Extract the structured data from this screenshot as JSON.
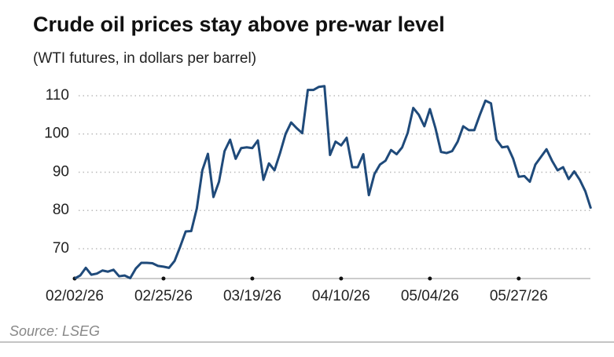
{
  "chart_data": {
    "type": "line",
    "title": "Crude oil prices stay above pre-war level",
    "subtitle": "(WTI futures, in dollars per barrel)",
    "source": "Source: LSEG",
    "categories": [
      "02/02/26",
      null,
      null,
      null,
      null,
      null,
      null,
      null,
      null,
      null,
      null,
      null,
      null,
      null,
      null,
      null,
      "02/25/26",
      null,
      null,
      null,
      null,
      null,
      null,
      null,
      null,
      null,
      null,
      null,
      null,
      null,
      null,
      null,
      "03/19/26",
      null,
      null,
      null,
      null,
      null,
      null,
      null,
      null,
      null,
      null,
      null,
      null,
      null,
      null,
      null,
      "04/10/26",
      null,
      null,
      null,
      null,
      null,
      null,
      null,
      null,
      null,
      null,
      null,
      null,
      null,
      null,
      null,
      "05/04/26",
      null,
      null,
      null,
      null,
      null,
      null,
      null,
      null,
      null,
      null,
      null,
      null,
      null,
      null,
      null,
      "05/27/26",
      null,
      null,
      null,
      null,
      null,
      null,
      null,
      null,
      null,
      null,
      null,
      null,
      null
    ],
    "series": [
      {
        "name": "WTI futures",
        "color": "#1f4a7a",
        "values": [
          62.2,
          63,
          65,
          63.2,
          63.5,
          64.3,
          64,
          64.5,
          62.8,
          63,
          62.3,
          64.8,
          66.3,
          66.3,
          66.2,
          65.5,
          65.3,
          65,
          66.8,
          70.5,
          74.5,
          74.6,
          80.5,
          90.5,
          94.8,
          83.5,
          87.5,
          95.5,
          98.5,
          93.5,
          96.3,
          96.5,
          96.3,
          98.3,
          88,
          92.3,
          90.5,
          95,
          100,
          103,
          101.5,
          100.2,
          111.5,
          111.5,
          112.3,
          112.5,
          94.5,
          98,
          97,
          99,
          91.3,
          91.3,
          94.7,
          84,
          89.5,
          92,
          93,
          95.8,
          94.7,
          96.5,
          100.3,
          106.8,
          105,
          102,
          106.5,
          101.5,
          95.3,
          95,
          95.5,
          98,
          102,
          101,
          101,
          105,
          108.7,
          108,
          98.5,
          96.5,
          96.7,
          93.5,
          88.8,
          89,
          87.5,
          92,
          94,
          96,
          93,
          90.5,
          91.3,
          88.2,
          90.2,
          88,
          85,
          80.5
        ]
      }
    ],
    "ylim": [
      62.2,
      114.5
    ],
    "yticks": [
      70,
      80,
      90,
      100,
      110
    ],
    "grid": true
  }
}
